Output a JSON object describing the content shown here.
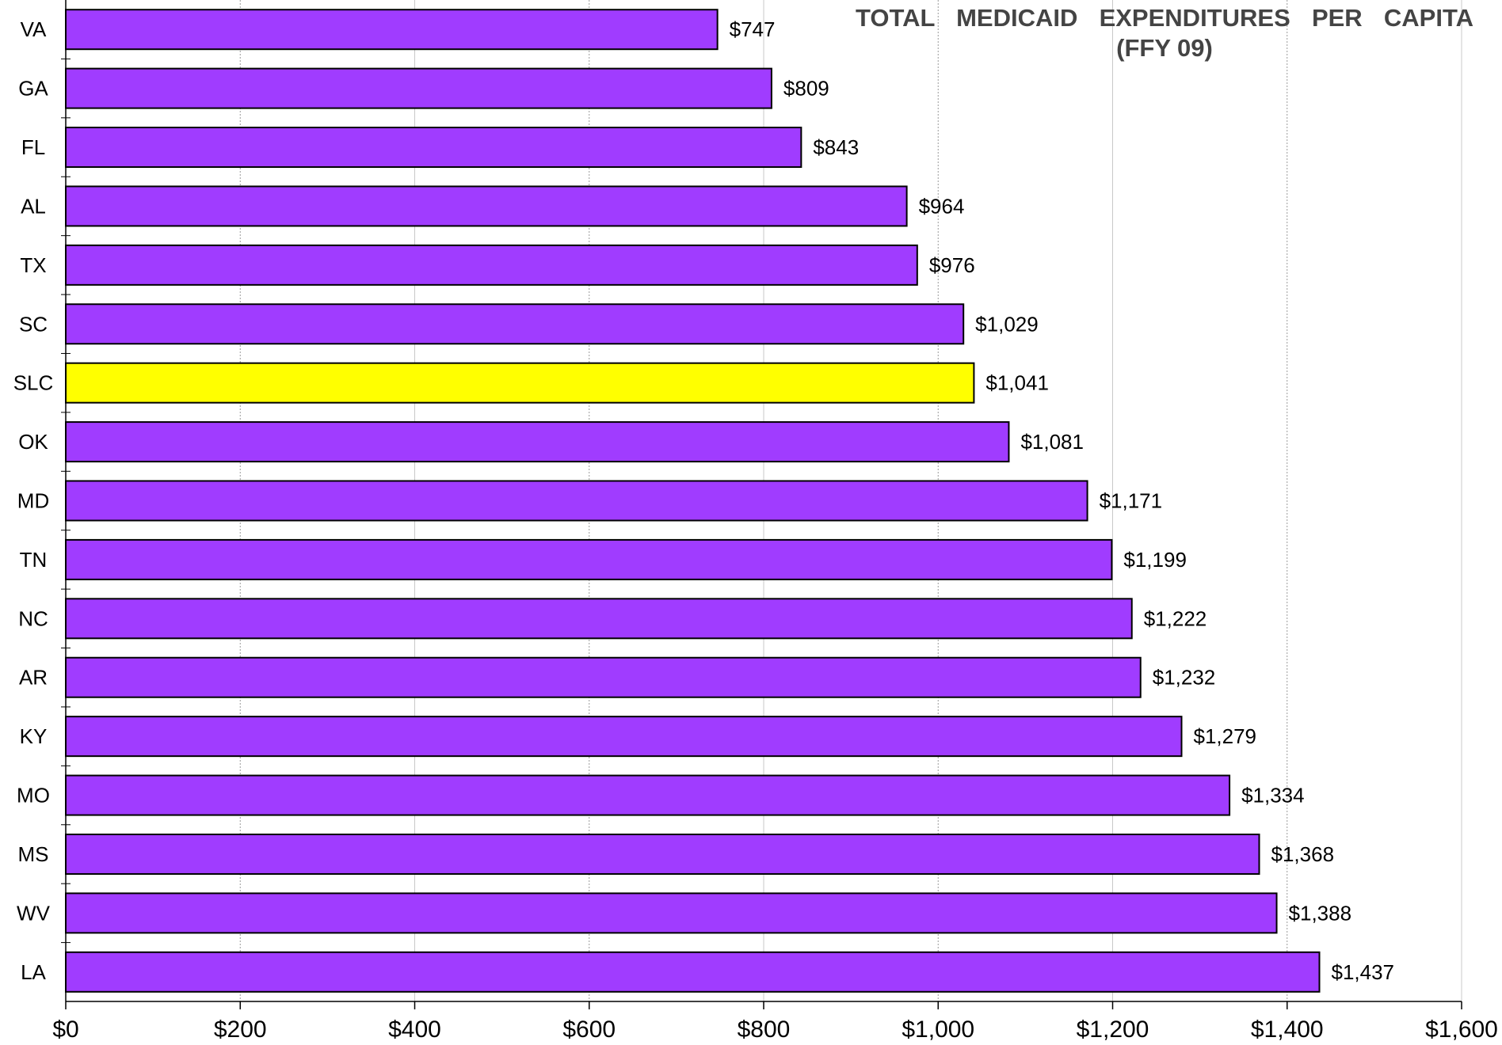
{
  "chart_data": {
    "type": "bar",
    "orientation": "horizontal",
    "title": "TOTAL MEDICAID EXPENDITURES PER CAPITA",
    "subtitle": "(FFY 09)",
    "xlabel": "",
    "ylabel": "",
    "xlim": [
      0,
      1600
    ],
    "x_ticks": [
      "$0",
      "$200",
      "$400",
      "$600",
      "$800",
      "$1,000",
      "$1,200",
      "$1,400",
      "$1,600"
    ],
    "grid": "vertical gridlines",
    "legend": "none",
    "colors": {
      "bar": "#a03cff",
      "highlight": "#ffff00",
      "bar_outline": "#000000",
      "grid": "#b0b0b0",
      "title": "#444444"
    },
    "categories": [
      "VA",
      "GA",
      "FL",
      "AL",
      "TX",
      "SC",
      "SLC",
      "OK",
      "MD",
      "TN",
      "NC",
      "AR",
      "KY",
      "MO",
      "MS",
      "WV",
      "LA"
    ],
    "values": [
      747,
      809,
      843,
      964,
      976,
      1029,
      1041,
      1081,
      1171,
      1199,
      1222,
      1232,
      1279,
      1334,
      1368,
      1388,
      1437
    ],
    "value_labels": [
      "$747",
      "$809",
      "$843",
      "$964",
      "$976",
      "$1,029",
      "$1,041",
      "$1,081",
      "$1,171",
      "$1,199",
      "$1,222",
      "$1,232",
      "$1,279",
      "$1,334",
      "$1,368",
      "$1,388",
      "$1,437"
    ],
    "highlighted_category": "SLC"
  }
}
